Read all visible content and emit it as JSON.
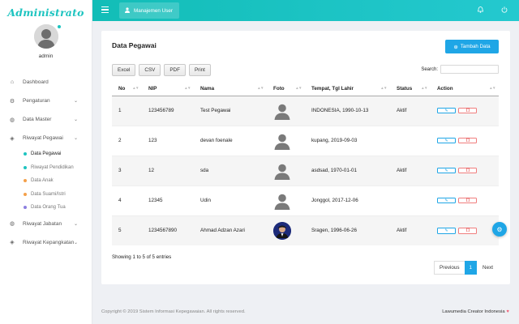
{
  "brand": {
    "title": "Administrato"
  },
  "profile": {
    "username": "admin"
  },
  "sidebar": {
    "items": [
      {
        "label": "Dashboard",
        "icon": "home-icon",
        "glyph": "⌂",
        "has_chevron": false
      },
      {
        "label": "Pengaturan",
        "icon": "wrench-icon",
        "glyph": "⚙",
        "has_chevron": true
      },
      {
        "label": "Data Master",
        "icon": "location-icon",
        "glyph": "◍",
        "has_chevron": true
      },
      {
        "label": "Riwayat Pegawai",
        "icon": "stack-icon",
        "glyph": "◈",
        "has_chevron": true
      }
    ],
    "subitems": [
      {
        "label": "Data Pegawai",
        "color": "#1ec4c0",
        "active": true
      },
      {
        "label": "Riwayat Pendidikan",
        "color": "#1ec4c0",
        "active": false
      },
      {
        "label": "Data Anak",
        "color": "#f4a04a",
        "active": false
      },
      {
        "label": "Data Suami/Istri",
        "color": "#f4a04a",
        "active": false
      },
      {
        "label": "Data Orang Tua",
        "color": "#8c7fe0",
        "active": false
      }
    ],
    "items_after": [
      {
        "label": "Riwayat Jabatan",
        "icon": "location-icon",
        "glyph": "◍",
        "has_chevron": true
      },
      {
        "label": "Riwayat Kepangkatan",
        "icon": "stack-icon",
        "glyph": "◈",
        "has_chevron": true
      }
    ]
  },
  "topbar": {
    "tab_label": "Manajemen User"
  },
  "card": {
    "title": "Data Pegawai",
    "add_button": "Tambah Data",
    "export_buttons": [
      "Excel",
      "CSV",
      "PDF",
      "Print"
    ],
    "search_label": "Search:",
    "search_value": ""
  },
  "table": {
    "headers": [
      "No",
      "NIP",
      "Nama",
      "Foto",
      "Tempat, Tgl Lahir",
      "Status",
      "Action"
    ],
    "rows": [
      {
        "no": "1",
        "nip": "123456789",
        "nama": "Test Pegawai",
        "foto": "default",
        "tempat": "INDONESIA, 1990-10-13",
        "status": "Aktif"
      },
      {
        "no": "2",
        "nip": "123",
        "nama": "devan foenale",
        "foto": "default",
        "tempat": "kupang, 2019-09-03",
        "status": ""
      },
      {
        "no": "3",
        "nip": "12",
        "nama": "sda",
        "foto": "default",
        "tempat": "asdsad, 1970-01-01",
        "status": "Aktif"
      },
      {
        "no": "4",
        "nip": "12345",
        "nama": "Udin",
        "foto": "default",
        "tempat": "Jonggol, 2017-12-06",
        "status": ""
      },
      {
        "no": "5",
        "nip": "1234567890",
        "nama": "Ahmad Adzan Azari",
        "foto": "photo",
        "tempat": "Sragen, 1996-06-26",
        "status": "Aktif"
      }
    ]
  },
  "table_info": "Showing 1 to 5 of 5 entries",
  "pagination": {
    "prev": "Previous",
    "current": "1",
    "next": "Next"
  },
  "footer": {
    "left": "Copyright © 2019 Sistem Informasi Kepegawaian. All rights reserved.",
    "right": "Lawumedia Creator Indonesia",
    "heart": "♥"
  },
  "colors": {
    "accent": "#1ec4c0",
    "primary": "#1fa6e6",
    "danger": "#e45555"
  }
}
